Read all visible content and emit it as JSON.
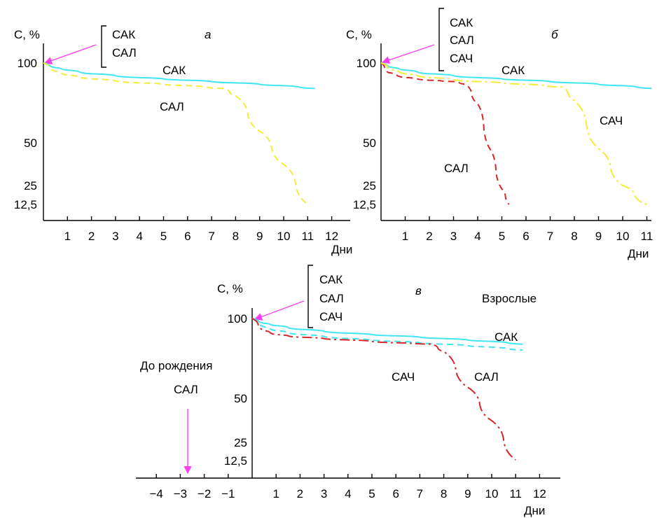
{
  "colors": {
    "sak": "#3fe6f0",
    "sal_a": "#f4ec3a",
    "sal_red": "#d8262a",
    "sach_yellow": "#f4ec3a",
    "sach_red": "#d8262a",
    "arrow": "#ff3df0",
    "axis": "#000000"
  },
  "chart_data": [
    {
      "type": "line",
      "panel_label": "а",
      "ylabel": "С, %",
      "xlabel": "Дни",
      "x_ticks": [
        "1",
        "2",
        "3",
        "4",
        "5",
        "6",
        "7",
        "8",
        "9",
        "10",
        "11",
        "12"
      ],
      "y_ticks": [
        "100",
        "50",
        "25",
        "12,5"
      ],
      "legend": [
        "САК",
        "САЛ"
      ],
      "xlim": [
        0,
        12.5
      ],
      "series": [
        {
          "name": "САК",
          "style": "solid",
          "color": "#3fe6f0",
          "points": [
            [
              0,
              100
            ],
            [
              0.5,
              96
            ],
            [
              1,
              94
            ],
            [
              2,
              91
            ],
            [
              4,
              88
            ],
            [
              6,
              86
            ],
            [
              8,
              84
            ],
            [
              10,
              82
            ],
            [
              11.3,
              80
            ]
          ]
        },
        {
          "name": "САЛ",
          "style": "dashed",
          "color": "#f4ec3a",
          "points": [
            [
              0,
              100
            ],
            [
              0.5,
              93
            ],
            [
              1,
              90
            ],
            [
              2,
              87
            ],
            [
              4,
              84
            ],
            [
              6,
              82
            ],
            [
              7.5,
              80
            ],
            [
              8,
              75
            ],
            [
              9,
              55
            ],
            [
              10,
              35
            ],
            [
              11,
              12.5
            ]
          ]
        }
      ],
      "annotations": [
        {
          "text": "САК",
          "x": 5,
          "y": 95
        },
        {
          "text": "САЛ",
          "x": 7,
          "y": 72
        }
      ]
    },
    {
      "type": "line",
      "panel_label": "б",
      "ylabel": "С, %",
      "xlabel": "Дни",
      "x_ticks": [
        "1",
        "2",
        "3",
        "4",
        "5",
        "6",
        "7",
        "8",
        "9",
        "10",
        "11"
      ],
      "y_ticks": [
        "100",
        "50",
        "25",
        "12,5"
      ],
      "legend": [
        "САК",
        "САЛ",
        "САЧ"
      ],
      "xlim": [
        0,
        11.3
      ],
      "series": [
        {
          "name": "САК",
          "style": "solid",
          "color": "#3fe6f0",
          "points": [
            [
              0,
              100
            ],
            [
              0.5,
              96
            ],
            [
              1,
              94
            ],
            [
              2,
              91
            ],
            [
              4,
              88
            ],
            [
              6,
              86
            ],
            [
              8,
              84
            ],
            [
              10,
              82
            ],
            [
              11.2,
              80
            ]
          ]
        },
        {
          "name": "САЛ",
          "style": "dashed",
          "color": "#d8262a",
          "points": [
            [
              0,
              100
            ],
            [
              0.3,
              92
            ],
            [
              1,
              88
            ],
            [
              2,
              86
            ],
            [
              3,
              85
            ],
            [
              3.5,
              83
            ],
            [
              4,
              70
            ],
            [
              4.5,
              45
            ],
            [
              5,
              22
            ],
            [
              5.3,
              12.5
            ]
          ]
        },
        {
          "name": "САЧ",
          "style": "dashdot",
          "color": "#f4ec3a",
          "points": [
            [
              0,
              100
            ],
            [
              0.5,
              94
            ],
            [
              1,
              91
            ],
            [
              2,
              88
            ],
            [
              4,
              85
            ],
            [
              6,
              83
            ],
            [
              7.5,
              81
            ],
            [
              8,
              72
            ],
            [
              9,
              45
            ],
            [
              10,
              25
            ],
            [
              11,
              12.5
            ]
          ]
        }
      ],
      "annotations": [
        {
          "text": "САК",
          "x": 5,
          "y": 95
        },
        {
          "text": "САЧ",
          "x": 9,
          "y": 62
        },
        {
          "text": "САЛ",
          "x": 2.5,
          "y": 42
        }
      ]
    },
    {
      "type": "line",
      "panel_label": "в",
      "ylabel": "С, %",
      "xlabel": "Дни",
      "x_ticks": [
        "−4",
        "−3",
        "−2",
        "−1",
        "1",
        "2",
        "3",
        "4",
        "5",
        "6",
        "7",
        "8",
        "9",
        "10",
        "11",
        "12"
      ],
      "y_ticks": [
        "100",
        "50",
        "25",
        "12,5"
      ],
      "legend": [
        "САК",
        "САЛ",
        "САЧ"
      ],
      "xlim": [
        -5,
        12.5
      ],
      "series": [
        {
          "name": "САК",
          "style": "solid",
          "color": "#3fe6f0",
          "points": [
            [
              0,
              100
            ],
            [
              0.5,
              96
            ],
            [
              1,
              94
            ],
            [
              2,
              91
            ],
            [
              4,
              88
            ],
            [
              6,
              86
            ],
            [
              8,
              84
            ],
            [
              10,
              82
            ],
            [
              11.3,
              80
            ]
          ]
        },
        {
          "name": "САЛ",
          "style": "dashed",
          "color": "#3fe6f0",
          "points": [
            [
              0,
              100
            ],
            [
              0.5,
              93
            ],
            [
              1,
              90
            ],
            [
              2,
              87
            ],
            [
              4,
              84
            ],
            [
              6,
              82
            ],
            [
              8,
              80
            ],
            [
              10,
              78
            ],
            [
              11.3,
              76
            ]
          ]
        },
        {
          "name": "САЧ",
          "style": "dashdot",
          "color": "#d8262a",
          "points": [
            [
              0,
              100
            ],
            [
              0.5,
              90
            ],
            [
              1,
              87
            ],
            [
              2,
              85
            ],
            [
              4,
              83
            ],
            [
              6,
              81
            ],
            [
              7.5,
              80
            ],
            [
              8,
              75
            ],
            [
              9,
              55
            ],
            [
              10,
              35
            ],
            [
              11,
              12.5
            ]
          ]
        }
      ],
      "annotations": [
        {
          "text": "Взрослые",
          "x": 9.5,
          "y": 112
        },
        {
          "text": "САК",
          "x": 10,
          "y": 91
        },
        {
          "text": "САЛ",
          "x": 10,
          "y": 74
        },
        {
          "text": "САЧ",
          "x": 6,
          "y": 74
        },
        {
          "text": "До рождения",
          "x": -3,
          "y": 80
        },
        {
          "text": "САЛ",
          "x": -3,
          "y": 63
        }
      ],
      "birth_arrow_x": -3
    }
  ]
}
